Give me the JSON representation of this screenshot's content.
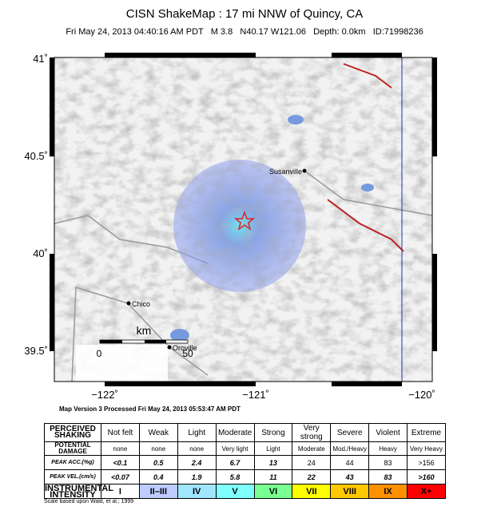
{
  "header": {
    "title": "CISN ShakeMap : 17 mi NNW of Quincy, CA",
    "subtitle": "Fri May 24, 2013 04:40:16 AM PDT   M 3.8   N40.17 W121.06   Depth: 0.0km   ID:71998236"
  },
  "map": {
    "lat_labels": [
      "41˚",
      "40.5˚",
      "40˚",
      "39.5˚"
    ],
    "lon_labels": [
      "−122˚",
      "−121˚",
      "−120˚"
    ],
    "places": [
      "Susanville",
      "Chico",
      "Oroville"
    ],
    "scale": {
      "unit": "km",
      "start": "0",
      "end": "50"
    }
  },
  "version": "Map Version 3 Processed Fri May 24, 2013 05:53:47 AM PDT",
  "table": {
    "rows": [
      [
        "PERCEIVED SHAKING",
        "Not felt",
        "Weak",
        "Light",
        "Moderate",
        "Strong",
        "Very strong",
        "Severe",
        "Violent",
        "Extreme"
      ],
      [
        "POTENTIAL DAMAGE",
        "none",
        "none",
        "none",
        "Very light",
        "Light",
        "Moderate",
        "Mod./Heavy",
        "Heavy",
        "Very Heavy"
      ],
      [
        "PEAK ACC.(%g)",
        "<0.1",
        "0.5",
        "2.4",
        "6.7",
        "13",
        "24",
        "44",
        "83",
        ">156"
      ],
      [
        "PEAK VEL.(cm/s)",
        "<0.07",
        "0.4",
        "1.9",
        "5.8",
        "11",
        "22",
        "43",
        "83",
        ">160"
      ],
      [
        "INSTRUMENTAL INTENSITY",
        "I",
        "II–III",
        "IV",
        "V",
        "VI",
        "VII",
        "VIII",
        "IX",
        "X+"
      ]
    ]
  },
  "footnote": "Scale based upon Wald, et al.; 1999"
}
